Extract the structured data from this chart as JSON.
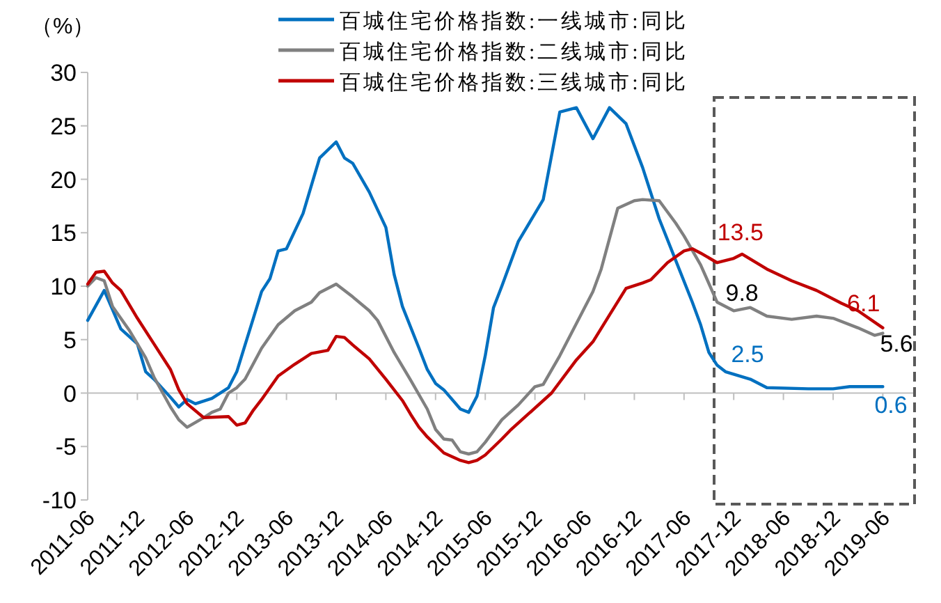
{
  "chart_data": {
    "type": "line",
    "ylabel": "（%）",
    "xlim": [
      "2011-06",
      "2019-10"
    ],
    "ylim": [
      -10,
      30
    ],
    "yticks": [
      -10,
      -5,
      0,
      5,
      10,
      15,
      20,
      25,
      30
    ],
    "xticks": [
      "2011-06",
      "2011-12",
      "2012-06",
      "2012-12",
      "2013-06",
      "2013-12",
      "2014-06",
      "2014-12",
      "2015-06",
      "2015-12",
      "2016-06",
      "2016-12",
      "2017-06",
      "2017-12",
      "2018-06",
      "2018-12",
      "2019-06"
    ],
    "legend": "top",
    "marker": "none",
    "line_style": "solid",
    "series": [
      {
        "name": "百城住宅价格指数:一线城市:同比",
        "color": "#0070c0",
        "x": [
          "2011-06",
          "2011-08",
          "2011-10",
          "2011-12",
          "2012-01",
          "2012-02",
          "2012-04",
          "2012-05",
          "2012-06",
          "2012-07",
          "2012-09",
          "2012-11",
          "2012-12",
          "2013-01",
          "2013-02",
          "2013-03",
          "2013-04",
          "2013-05",
          "2013-06",
          "2013-08",
          "2013-10",
          "2013-12",
          "2014-01",
          "2014-02",
          "2014-04",
          "2014-06",
          "2014-07",
          "2014-08",
          "2014-10",
          "2014-11",
          "2014-12",
          "2015-01",
          "2015-03",
          "2015-04",
          "2015-05",
          "2015-06",
          "2015-07",
          "2015-08",
          "2015-10",
          "2016-01",
          "2016-03",
          "2016-05",
          "2016-07",
          "2016-09",
          "2016-11",
          "2017-01",
          "2017-03",
          "2017-05",
          "2017-07",
          "2017-08",
          "2017-09",
          "2017-10",
          "2017-11",
          "2018-02",
          "2018-04",
          "2018-09",
          "2018-12",
          "2019-02",
          "2019-06"
        ],
        "values": [
          6.8,
          9.6,
          6.0,
          4.6,
          2.0,
          1.3,
          -0.4,
          -1.3,
          -0.6,
          -1.0,
          -0.5,
          0.5,
          2.0,
          4.5,
          7.0,
          9.5,
          10.7,
          13.3,
          13.5,
          16.8,
          22.0,
          23.5,
          22.0,
          21.5,
          18.8,
          15.5,
          11.1,
          8.1,
          4.2,
          2.2,
          0.9,
          0.3,
          -1.5,
          -1.8,
          -0.3,
          3.5,
          8.0,
          10.0,
          14.2,
          18.1,
          26.3,
          26.7,
          23.8,
          26.7,
          25.2,
          21.1,
          16.3,
          12.4,
          8.5,
          6.4,
          3.8,
          2.6,
          2.0,
          1.3,
          0.5,
          0.4,
          0.4,
          0.6,
          0.6
        ]
      },
      {
        "name": "百城住宅价格指数:二线城市:同比",
        "color": "#808080",
        "x": [
          "2011-06",
          "2011-07",
          "2011-08",
          "2011-09",
          "2011-11",
          "2012-01",
          "2012-02",
          "2012-04",
          "2012-05",
          "2012-06",
          "2012-08",
          "2012-09",
          "2012-10",
          "2012-11",
          "2012-12",
          "2013-01",
          "2013-03",
          "2013-05",
          "2013-07",
          "2013-09",
          "2013-10",
          "2013-12",
          "2014-02",
          "2014-04",
          "2014-05",
          "2014-07",
          "2014-09",
          "2014-11",
          "2014-12",
          "2015-01",
          "2015-02",
          "2015-03",
          "2015-04",
          "2015-05",
          "2015-06",
          "2015-08",
          "2015-10",
          "2015-12",
          "2016-01",
          "2016-03",
          "2016-05",
          "2016-07",
          "2016-08",
          "2016-10",
          "2016-12",
          "2017-01",
          "2017-03",
          "2017-05",
          "2017-06",
          "2017-08",
          "2017-10",
          "2017-12",
          "2018-02",
          "2018-04",
          "2018-07",
          "2018-10",
          "2018-12",
          "2019-03",
          "2019-05",
          "2019-06"
        ],
        "values": [
          10.0,
          10.8,
          10.5,
          8.1,
          5.9,
          3.3,
          1.5,
          -1.3,
          -2.5,
          -3.2,
          -2.3,
          -1.8,
          -1.5,
          0.0,
          0.5,
          1.3,
          4.2,
          6.4,
          7.7,
          8.5,
          9.4,
          10.2,
          9.0,
          7.7,
          6.8,
          3.8,
          1.2,
          -1.5,
          -3.4,
          -4.3,
          -4.4,
          -5.5,
          -5.7,
          -5.5,
          -4.6,
          -2.5,
          -1.1,
          0.6,
          0.8,
          3.5,
          6.5,
          9.5,
          11.6,
          17.3,
          18.0,
          18.1,
          18.0,
          15.9,
          14.7,
          12.0,
          8.5,
          7.7,
          8.0,
          7.2,
          6.9,
          7.2,
          7.0,
          6.1,
          5.4,
          5.6
        ]
      },
      {
        "name": "百城住宅价格指数:三线城市:同比",
        "color": "#c00000",
        "x": [
          "2011-06",
          "2011-07",
          "2011-08",
          "2011-09",
          "2011-10",
          "2011-12",
          "2012-02",
          "2012-04",
          "2012-05",
          "2012-06",
          "2012-08",
          "2012-11",
          "2012-12",
          "2013-01",
          "2013-02",
          "2013-03",
          "2013-05",
          "2013-07",
          "2013-09",
          "2013-11",
          "2013-12",
          "2014-01",
          "2014-02",
          "2014-04",
          "2014-06",
          "2014-08",
          "2014-09",
          "2014-10",
          "2014-11",
          "2015-01",
          "2015-03",
          "2015-04",
          "2015-05",
          "2015-06",
          "2015-08",
          "2015-09",
          "2015-11",
          "2016-02",
          "2016-05",
          "2016-07",
          "2016-09",
          "2016-11",
          "2017-01",
          "2017-02",
          "2017-04",
          "2017-06",
          "2017-07",
          "2017-08",
          "2017-10",
          "2017-12",
          "2018-01",
          "2018-04",
          "2018-07",
          "2018-10",
          "2019-01",
          "2019-03",
          "2019-06"
        ],
        "values": [
          10.2,
          11.3,
          11.4,
          10.3,
          9.6,
          7.0,
          4.6,
          2.2,
          0.3,
          -1.0,
          -2.3,
          -2.2,
          -3.0,
          -2.8,
          -1.6,
          -0.6,
          1.6,
          2.7,
          3.7,
          4.0,
          5.3,
          5.2,
          4.5,
          3.2,
          1.3,
          -0.7,
          -2.0,
          -3.2,
          -4.1,
          -5.6,
          -6.3,
          -6.5,
          -6.3,
          -5.8,
          -4.3,
          -3.5,
          -2.1,
          0.0,
          3.1,
          4.8,
          7.3,
          9.8,
          10.3,
          10.6,
          12.2,
          13.3,
          13.5,
          13.1,
          12.2,
          12.6,
          13.0,
          11.6,
          10.5,
          9.6,
          8.4,
          7.7,
          6.1
        ]
      }
    ],
    "annotations": [
      {
        "text": "13.5",
        "x": "2017-07",
        "y": 13.5
      },
      {
        "text": "9.8",
        "x": "2017-09",
        "y": 9.8
      },
      {
        "text": "2.5",
        "x": "2017-10",
        "y": 2.5
      },
      {
        "text": "6.1",
        "x": "2019-06",
        "y": 6.1
      },
      {
        "text": "5.6",
        "x": "2019-06",
        "y": 5.6
      },
      {
        "text": "0.6",
        "x": "2019-06",
        "y": 0.6
      }
    ]
  }
}
